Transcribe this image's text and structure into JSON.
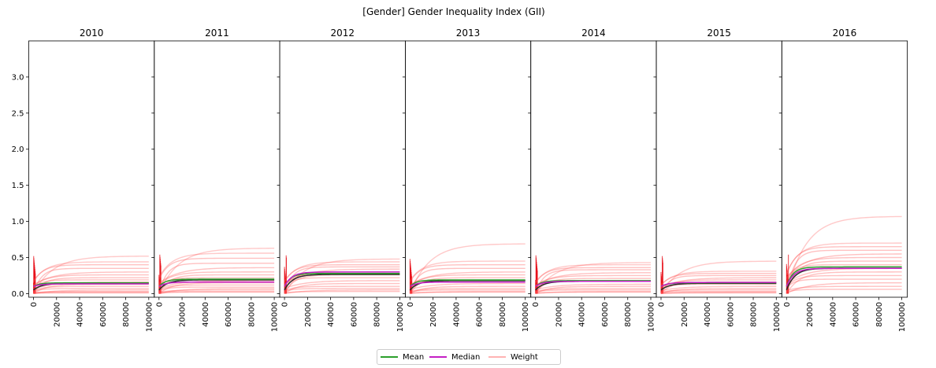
{
  "chart_data": {
    "type": "line",
    "title": "[Gender] Gender Inequality Index (GII)",
    "panels": [
      {
        "title": "2010",
        "mean": 0.15,
        "median": 0.135,
        "weights": [
          0.52,
          0.44,
          0.4,
          0.35,
          0.3,
          0.26,
          0.22,
          0.19,
          0.16,
          0.13,
          0.1,
          0.07,
          0.05,
          0.03,
          0.02,
          0.01
        ]
      },
      {
        "title": "2011",
        "mean": 0.2,
        "median": 0.16,
        "weights": [
          0.63,
          0.56,
          0.49,
          0.42,
          0.36,
          0.3,
          0.26,
          0.22,
          0.18,
          0.15,
          0.12,
          0.09,
          0.07,
          0.05,
          0.03,
          0.02
        ]
      },
      {
        "title": "2012",
        "mean": 0.28,
        "median": 0.3,
        "weights": [
          0.48,
          0.44,
          0.4,
          0.37,
          0.34,
          0.3,
          0.26,
          0.22,
          0.18,
          0.14,
          0.1,
          0.07,
          0.05,
          0.03
        ]
      },
      {
        "title": "2013",
        "mean": 0.19,
        "median": 0.16,
        "weights": [
          0.69,
          0.45,
          0.4,
          0.35,
          0.3,
          0.26,
          0.22,
          0.18,
          0.14,
          0.1,
          0.07,
          0.05,
          0.03,
          0.02
        ]
      },
      {
        "title": "2014",
        "mean": 0.18,
        "median": 0.17,
        "weights": [
          0.43,
          0.4,
          0.36,
          0.33,
          0.29,
          0.25,
          0.21,
          0.17,
          0.13,
          0.1,
          0.07,
          0.05,
          0.03,
          0.02
        ]
      },
      {
        "title": "2015",
        "mean": 0.15,
        "median": 0.155,
        "weights": [
          0.45,
          0.31,
          0.28,
          0.25,
          0.22,
          0.19,
          0.16,
          0.13,
          0.1,
          0.07,
          0.05,
          0.03,
          0.02,
          0.01
        ]
      },
      {
        "title": "2016",
        "mean": 0.37,
        "median": 0.35,
        "weights": [
          1.07,
          0.7,
          0.65,
          0.6,
          0.55,
          0.5,
          0.45,
          0.4,
          0.35,
          0.3,
          0.25,
          0.2,
          0.15,
          0.1,
          0.06
        ]
      }
    ],
    "x_range": [
      0,
      100000
    ],
    "xticks": [
      0,
      20000,
      40000,
      60000,
      80000,
      100000
    ],
    "xtick_labels": [
      "0",
      "20000",
      "40000",
      "60000",
      "80000",
      "100000"
    ],
    "y_range": [
      -0.05,
      3.5
    ],
    "yticks": [
      0.0,
      0.5,
      1.0,
      1.5,
      2.0,
      2.5,
      3.0
    ],
    "ytick_labels": [
      "0.0",
      "0.5",
      "1.0",
      "1.5",
      "2.0",
      "2.5",
      "3.0"
    ],
    "grid": false,
    "legend_position": "bottom-center",
    "series": [
      {
        "name": "Mean",
        "color": "#2ca02c"
      },
      {
        "name": "Median",
        "color": "#c41fc4"
      },
      {
        "name": "Weight",
        "color": "#ffb3b3"
      }
    ]
  }
}
